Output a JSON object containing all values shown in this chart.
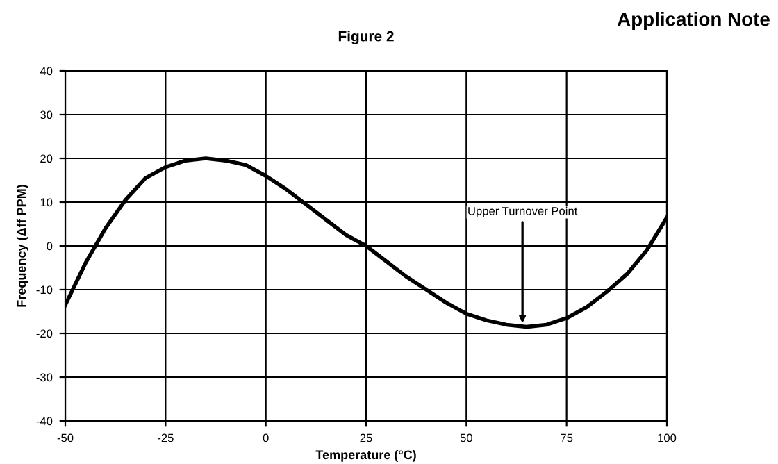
{
  "chart_data": {
    "type": "line",
    "title": "Figure 2",
    "xlabel": "Temperature (°C)",
    "ylabel": "Frequency (Δff PPM)",
    "x": [
      -50,
      -45,
      -40,
      -35,
      -30,
      -25,
      -20,
      -15,
      -10,
      -5,
      0,
      5,
      10,
      15,
      20,
      25,
      30,
      35,
      40,
      45,
      50,
      55,
      60,
      65,
      70,
      75,
      80,
      85,
      90,
      95,
      100
    ],
    "series": [
      {
        "color": "#000000",
        "values": [
          -13.5,
          -4,
          4,
          10.5,
          15.5,
          18,
          19.5,
          20,
          19.5,
          18.5,
          16,
          13,
          9.5,
          6,
          2.5,
          0,
          -3.5,
          -7,
          -10,
          -13,
          -15.5,
          -17,
          -18,
          -18.5,
          -18,
          -16.5,
          -14,
          -10.5,
          -6.5,
          -1,
          6.5
        ]
      }
    ],
    "xlim": [
      -50,
      100
    ],
    "xticks": [
      -50,
      -25,
      0,
      25,
      50,
      75,
      100
    ],
    "ylim": [
      -40,
      40
    ],
    "yticks": [
      -40,
      -30,
      -20,
      -10,
      0,
      10,
      20,
      30,
      40
    ],
    "grid": true,
    "legend": false,
    "marker": "none",
    "line_style": "solid",
    "annotations": [
      {
        "text": "Upper Turnover Point",
        "x": 64,
        "y": -18.5
      },
      "Application Note"
    ]
  }
}
